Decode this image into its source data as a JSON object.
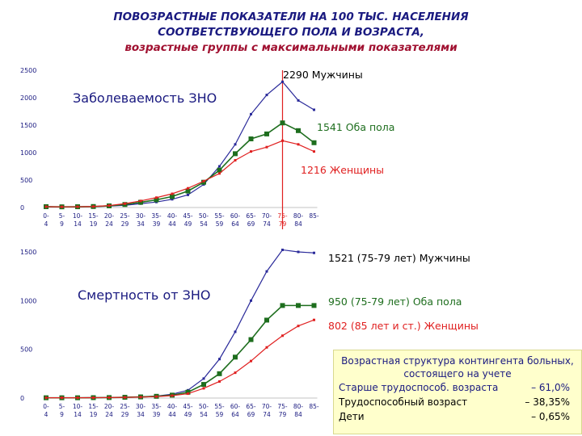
{
  "title": {
    "line1": "ПОВОЗРАСТНЫЕ ПОКАЗАТЕЛИ НА 100 ТЫС. НАСЕЛЕНИЯ",
    "line2": "СООТВЕТСТВУЮЩЕГО ПОЛА И ВОЗРАСТА,",
    "line3": "возрастные группы с максимальными показателями"
  },
  "chart_data": [
    {
      "type": "line",
      "title": "Заболеваемость ЗНО",
      "categories": [
        "0-4",
        "5-9",
        "10-14",
        "15-19",
        "20-24",
        "25-29",
        "30-34",
        "35-39",
        "40-44",
        "45-49",
        "50-54",
        "55-59",
        "60-64",
        "65-69",
        "70-74",
        "75-79",
        "80-84",
        "85-"
      ],
      "ylim": [
        0,
        2500
      ],
      "yticks": [
        "0",
        "500",
        "1000",
        "1500",
        "2000",
        "2500"
      ],
      "series": [
        {
          "name": "Мужчины",
          "color": "#2a2a9a",
          "values": [
            15,
            12,
            14,
            18,
            25,
            40,
            70,
            100,
            150,
            230,
            420,
            750,
            1150,
            1700,
            2050,
            2290,
            1950,
            1780
          ]
        },
        {
          "name": "Оба пола",
          "color": "#1e6e1e",
          "values": [
            15,
            12,
            14,
            18,
            30,
            55,
            95,
            140,
            200,
            300,
            460,
            680,
            980,
            1250,
            1340,
            1541,
            1400,
            1180
          ]
        },
        {
          "name": "Женщины",
          "color": "#e02020",
          "values": [
            15,
            12,
            14,
            18,
            35,
            70,
            120,
            180,
            250,
            350,
            480,
            620,
            860,
            1020,
            1100,
            1216,
            1150,
            1020
          ]
        }
      ],
      "annotations": [
        {
          "text": "2290 Мужчины",
          "color": "#000000"
        },
        {
          "text": "1541 Оба пола",
          "color": "#1e6e1e"
        },
        {
          "text": "1216   Женщины",
          "color": "#e02020"
        }
      ]
    },
    {
      "type": "line",
      "title": "Смертность от ЗНО",
      "categories": [
        "0-4",
        "5-9",
        "10-14",
        "15-19",
        "20-24",
        "25-29",
        "30-34",
        "35-39",
        "40-44",
        "45-49",
        "50-54",
        "55-59",
        "60-64",
        "65-69",
        "70-74",
        "75-79",
        "80-84",
        "85-"
      ],
      "ylim": [
        0,
        1500
      ],
      "yticks": [
        "0",
        "500",
        "1000",
        "1500"
      ],
      "series": [
        {
          "name": "Мужчины",
          "color": "#2a2a9a",
          "values": [
            3,
            3,
            3,
            4,
            5,
            8,
            12,
            20,
            40,
            80,
            200,
            400,
            680,
            1000,
            1300,
            1521,
            1500,
            1490
          ]
        },
        {
          "name": "Оба пола",
          "color": "#1e6e1e",
          "values": [
            3,
            3,
            3,
            4,
            5,
            8,
            12,
            18,
            30,
            60,
            140,
            250,
            420,
            600,
            800,
            950,
            950,
            950
          ]
        },
        {
          "name": "Женщины",
          "color": "#e02020",
          "values": [
            3,
            3,
            3,
            4,
            5,
            7,
            10,
            15,
            25,
            45,
            100,
            170,
            260,
            380,
            520,
            640,
            740,
            802
          ]
        }
      ],
      "annotations": [
        {
          "text": "1521 (75-79 лет)    Мужчины",
          "color": "#000000"
        },
        {
          "text": "950 (75-79 лет)       Оба пола",
          "color": "#1e6e1e"
        },
        {
          "text": "802 (85 лет и ст.)    Женщины",
          "color": "#e02020"
        }
      ]
    }
  ],
  "info_box": {
    "heading": "Возрастная структура контингента больных, состоящего на учете",
    "rows": [
      {
        "label": "Старше трудоспособ. возраста",
        "value": "– 61,0%"
      },
      {
        "label": "Трудоспособный возраст",
        "value": "– 38,35%"
      },
      {
        "label": "Дети",
        "value": "–   0,65%"
      }
    ]
  }
}
